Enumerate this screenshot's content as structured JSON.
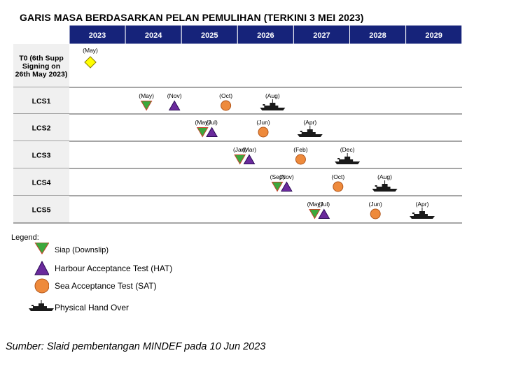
{
  "title": "GARIS MASA BERDASARKAN PELAN PEMULIHAN (TERKINI 3 MEI 2023)",
  "colors": {
    "header_bg": "#16237a",
    "header_text": "#ffffff",
    "row_label_bg": "#f0f0f0",
    "siap": "#3ca83c",
    "siap_border": "#c8402a",
    "hat": "#6a2a9c",
    "sat": "#ee8a3c",
    "t0": "#ffff00",
    "ship": "#1a1a1a"
  },
  "chart_data": {
    "type": "timeline",
    "years": [
      "2023",
      "2024",
      "2025",
      "2026",
      "2027",
      "2028",
      "2029"
    ],
    "rows": [
      {
        "label_lines": [
          "T0 (6th Supp",
          "Signing on",
          "26th May 2023)"
        ],
        "events": [
          {
            "type": "t0",
            "date": "2023-05",
            "label": "(May)"
          }
        ]
      },
      {
        "label_lines": [
          "LCS1"
        ],
        "events": [
          {
            "type": "siap",
            "date": "2024-05",
            "label": "(May)"
          },
          {
            "type": "hat",
            "date": "2024-11",
            "label": "(Nov)"
          },
          {
            "type": "sat",
            "date": "2025-10",
            "label": "(Oct)"
          },
          {
            "type": "pho",
            "date": "2026-08",
            "label": "(Aug)"
          }
        ]
      },
      {
        "label_lines": [
          "LCS2"
        ],
        "events": [
          {
            "type": "siap",
            "date": "2025-05",
            "label": "(May)"
          },
          {
            "type": "hat",
            "date": "2025-07",
            "label": "(Jul)"
          },
          {
            "type": "sat",
            "date": "2026-06",
            "label": "(Jun)"
          },
          {
            "type": "pho",
            "date": "2027-04",
            "label": "(Apr)"
          }
        ]
      },
      {
        "label_lines": [
          "LCS3"
        ],
        "events": [
          {
            "type": "siap",
            "date": "2026-01",
            "label": "(Jan)"
          },
          {
            "type": "hat",
            "date": "2026-03",
            "label": "(Mar)"
          },
          {
            "type": "sat",
            "date": "2027-02",
            "label": "(Feb)"
          },
          {
            "type": "pho",
            "date": "2027-12",
            "label": "(Dec)"
          }
        ]
      },
      {
        "label_lines": [
          "LCS4"
        ],
        "events": [
          {
            "type": "siap",
            "date": "2026-09",
            "label": "(Sep)"
          },
          {
            "type": "hat",
            "date": "2026-11",
            "label": "(Nov)"
          },
          {
            "type": "sat",
            "date": "2027-10",
            "label": "(Oct)"
          },
          {
            "type": "pho",
            "date": "2028-08",
            "label": "(Aug)"
          }
        ]
      },
      {
        "label_lines": [
          "LCS5"
        ],
        "events": [
          {
            "type": "siap",
            "date": "2027-05",
            "label": "(May)"
          },
          {
            "type": "hat",
            "date": "2027-07",
            "label": "(Jul)"
          },
          {
            "type": "sat",
            "date": "2028-06",
            "label": "(Jun)"
          },
          {
            "type": "pho",
            "date": "2029-04",
            "label": "(Apr)"
          }
        ]
      }
    ]
  },
  "legend": {
    "label": "Legend:",
    "items": [
      {
        "type": "siap",
        "text": "Siap (Downslip)"
      },
      {
        "type": "hat",
        "text": "Harbour Acceptance Test (HAT)"
      },
      {
        "type": "sat",
        "text": "Sea Acceptance Test (SAT)"
      },
      {
        "type": "pho",
        "text": "Physical Hand Over"
      }
    ]
  },
  "source": "Sumber: Slaid pembentangan MINDEF pada 10 Jun 2023"
}
